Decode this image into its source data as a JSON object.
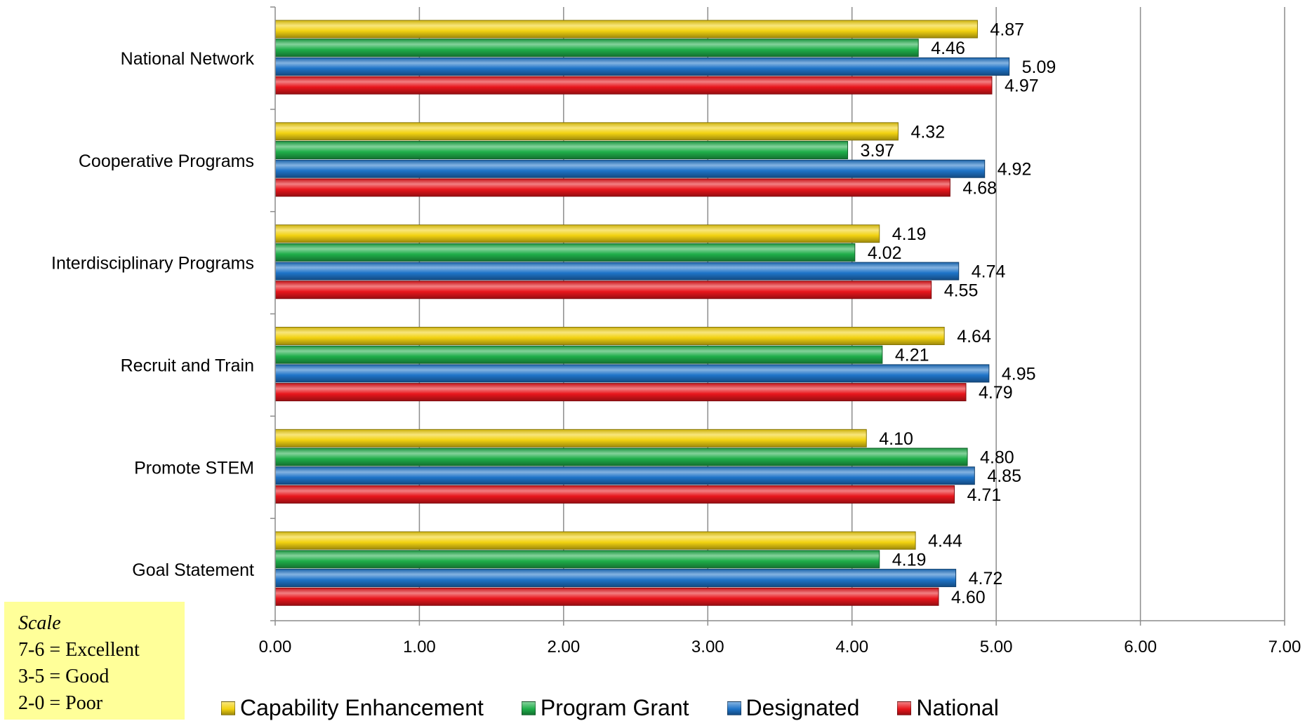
{
  "chart_data": {
    "type": "bar",
    "orientation": "horizontal",
    "categories": [
      "Goal Statement",
      "Promote STEM",
      "Recruit and Train",
      "Interdisciplinary Programs",
      "Cooperative Programs",
      "National Network"
    ],
    "series": [
      {
        "name": "Capability Enhancement",
        "color": "#f2d211",
        "values": [
          4.44,
          4.1,
          4.64,
          4.19,
          4.32,
          4.87
        ],
        "labels": [
          "4.44",
          "4.10",
          "4.64",
          "4.19",
          "4.32",
          "4.87"
        ]
      },
      {
        "name": "Program Grant",
        "color": "#1fae4a",
        "values": [
          4.19,
          4.8,
          4.21,
          4.02,
          3.97,
          4.46
        ],
        "labels": [
          "4.19",
          "4.80",
          "4.21",
          "4.02",
          "3.97",
          "4.46"
        ]
      },
      {
        "name": "Designated",
        "color": "#1f74c8",
        "values": [
          4.72,
          4.85,
          4.95,
          4.74,
          4.92,
          5.09
        ],
        "labels": [
          "4.72",
          "4.85",
          "4.95",
          "4.74",
          "4.92",
          "5.09"
        ]
      },
      {
        "name": "National",
        "color": "#e8161c",
        "values": [
          4.6,
          4.71,
          4.79,
          4.55,
          4.68,
          4.97
        ],
        "labels": [
          "4.60",
          "4.71",
          "4.79",
          "4.55",
          "4.68",
          "4.97"
        ]
      }
    ],
    "xlim": [
      0,
      7
    ],
    "xticks": [
      "0.00",
      "1.00",
      "2.00",
      "3.00",
      "4.00",
      "5.00",
      "6.00",
      "7.00"
    ],
    "grid": "vertical",
    "legend_position": "bottom"
  },
  "scale_box": {
    "title": "Scale",
    "lines": [
      "7-6 = Excellent",
      "3-5 = Good",
      "2-0 = Poor"
    ]
  }
}
